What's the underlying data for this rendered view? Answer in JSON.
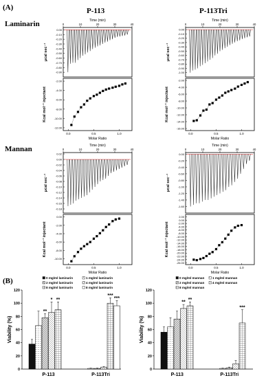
{
  "panel_a_label": "(A)",
  "panel_b_label": "(B)",
  "columns": [
    "P-113",
    "P-113Tri"
  ],
  "rows": [
    "Laminarin",
    "Mannan"
  ],
  "itc_labels": {
    "time": "Time (min)",
    "power": "μcal sec⁻¹",
    "enthalpy": "Kcal mol⁻¹ injectant",
    "molar": "Molar Ratio"
  },
  "chart_data": [
    {
      "type": "scatter",
      "panel": "A",
      "sample": "Laminarin",
      "peptide": "P-113",
      "top": {
        "xlabel": "Time (min)",
        "ylabel": "μcal sec⁻¹",
        "xlim": [
          0,
          40
        ],
        "ylim": [
          -1.0,
          0.05
        ],
        "xticks": [
          0,
          10,
          20,
          30,
          40
        ],
        "yticks": [
          0.0,
          -0.1,
          -0.2,
          -0.3,
          -0.4,
          -0.5,
          -0.6,
          -0.7,
          -0.8,
          -0.9
        ],
        "ytick_labels": [
          "0.00",
          "-0.10",
          "-0.20",
          "-0.30",
          "-0.40",
          "-0.50",
          "-0.60",
          "-0.70",
          "-0.80",
          "-0.90"
        ],
        "peaks": [
          -0.9,
          -0.72,
          -0.7,
          -0.7,
          -0.64,
          -0.6,
          -0.55,
          -0.52,
          -0.48,
          -0.45,
          -0.41,
          -0.38,
          -0.35,
          -0.33,
          -0.3,
          -0.27,
          -0.25,
          -0.22,
          -0.2,
          -0.17,
          -0.15,
          -0.14,
          -0.13,
          -0.12,
          -0.1
        ]
      },
      "bottom": {
        "xlabel": "Molar Ratio",
        "ylabel": "Kcal mol⁻¹ injectant",
        "xlim": [
          -0.1,
          1.25
        ],
        "ylim": [
          -12.6,
          -1.4
        ],
        "xticks": [
          0.0,
          0.5,
          1.0
        ],
        "yticks": [
          -2,
          -4,
          -6,
          -8,
          -10,
          -12
        ],
        "ytick_labels": [
          "-2.00",
          "-4.00",
          "-6.00",
          "-8.00",
          "-10.00",
          "-12.00"
        ],
        "x": [
          0.06,
          0.12,
          0.19,
          0.25,
          0.31,
          0.37,
          0.43,
          0.5,
          0.56,
          0.62,
          0.68,
          0.74,
          0.8,
          0.87,
          0.93,
          1.0,
          1.06,
          1.12
        ],
        "y": [
          -11.4,
          -9.6,
          -8.6,
          -7.6,
          -7.0,
          -6.2,
          -5.7,
          -5.2,
          -4.9,
          -4.5,
          -4.1,
          -3.8,
          -3.6,
          -3.4,
          -3.2,
          -3.0,
          -2.7,
          -2.5
        ]
      }
    },
    {
      "type": "scatter",
      "panel": "A",
      "sample": "Laminarin",
      "peptide": "P-113Tri",
      "top": {
        "xlabel": "Time (min)",
        "ylabel": "μcal sec⁻¹",
        "xlim": [
          0,
          40
        ],
        "ylim": [
          -1.1,
          0.05
        ],
        "xticks": [
          0,
          10,
          20,
          30,
          40
        ],
        "yticks": [
          0.0,
          -0.1,
          -0.2,
          -0.3,
          -0.4,
          -0.5,
          -0.6,
          -0.7,
          -0.8,
          -0.9,
          -1.0
        ],
        "ytick_labels": [
          "0.00",
          "-0.10",
          "-0.20",
          "-0.30",
          "-0.40",
          "-0.50",
          "-0.60",
          "-0.70",
          "-0.80",
          "-0.90",
          "-1.00"
        ],
        "peaks": [
          -1.0,
          -0.95,
          -0.93,
          -0.9,
          -0.85,
          -0.82,
          -0.78,
          -0.74,
          -0.7,
          -0.66,
          -0.6,
          -0.56,
          -0.5,
          -0.47,
          -0.43,
          -0.4,
          -0.36,
          -0.33,
          -0.3,
          -0.27,
          -0.25,
          -0.22,
          -0.2,
          -0.18,
          -0.16
        ]
      },
      "bottom": {
        "xlabel": "Molar Ratio",
        "ylabel": "Kcal mol⁻¹ injectant",
        "xlim": [
          -0.1,
          1.25
        ],
        "ylim": [
          -16.6,
          -1.4
        ],
        "xticks": [
          0.0,
          0.5,
          1.0
        ],
        "yticks": [
          -2,
          -4,
          -6,
          -8,
          -10,
          -12,
          -14,
          -16
        ],
        "ytick_labels": [
          "-2.00",
          "-4.00",
          "-6.00",
          "-8.00",
          "-10.00",
          "-12.00",
          "-14.00",
          "-16.00"
        ],
        "x": [
          0.06,
          0.12,
          0.19,
          0.25,
          0.31,
          0.37,
          0.43,
          0.5,
          0.56,
          0.62,
          0.68,
          0.74,
          0.8,
          0.87,
          0.93,
          1.0,
          1.06,
          1.12
        ],
        "y": [
          -13.8,
          -13.6,
          -12.2,
          -10.8,
          -10.5,
          -9.0,
          -8.6,
          -7.6,
          -7.0,
          -6.4,
          -5.6,
          -5.2,
          -4.8,
          -4.4,
          -3.8,
          -3.3,
          -2.9,
          -2.5
        ]
      }
    },
    {
      "type": "scatter",
      "panel": "A",
      "sample": "Mannan",
      "peptide": "P-113",
      "top": {
        "xlabel": "Time (min)",
        "ylabel": "μcal sec⁻¹",
        "xlim": [
          0,
          40
        ],
        "ylim": [
          -0.195,
          0.025
        ],
        "xticks": [
          0,
          10,
          20,
          30,
          40
        ],
        "yticks": [
          0.02,
          0.0,
          -0.02,
          -0.04,
          -0.06,
          -0.08,
          -0.1,
          -0.12,
          -0.14,
          -0.16,
          -0.18
        ],
        "ytick_labels": [
          "0.02",
          "0.00",
          "-0.02",
          "-0.04",
          "-0.06",
          "-0.08",
          "-0.10",
          "-0.12",
          "-0.14",
          "-0.16",
          "-0.18"
        ],
        "peaks": [
          -0.17,
          -0.165,
          -0.16,
          -0.15,
          -0.145,
          -0.14,
          -0.135,
          -0.13,
          -0.12,
          -0.11,
          -0.1,
          -0.09,
          -0.08,
          -0.075,
          -0.07,
          -0.06,
          -0.05,
          -0.045,
          -0.04,
          -0.035,
          -0.03,
          -0.025,
          -0.02
        ]
      },
      "bottom": {
        "xlabel": "Molar Ratio",
        "ylabel": "Kcal mol⁻¹ injectant",
        "xlim": [
          -0.1,
          1.25
        ],
        "ylim": [
          -11.4,
          0.6
        ],
        "xticks": [
          0.0,
          0.5,
          1.0
        ],
        "yticks": [
          0,
          -2,
          -4,
          -6,
          -8,
          -10
        ],
        "ytick_labels": [
          "0.00",
          "-2.00",
          "-4.00",
          "-6.00",
          "-8.00",
          "-10.00"
        ],
        "x": [
          0.06,
          0.12,
          0.19,
          0.25,
          0.31,
          0.37,
          0.43,
          0.5,
          0.56,
          0.62,
          0.68,
          0.74,
          0.8,
          0.87,
          0.93,
          1.0
        ],
        "y": [
          -10.6,
          -9.4,
          -8.4,
          -7.6,
          -7.0,
          -6.5,
          -6.0,
          -5.2,
          -4.6,
          -3.9,
          -3.2,
          -2.4,
          -1.8,
          -1.0,
          -0.6,
          -0.4
        ]
      }
    },
    {
      "type": "scatter",
      "panel": "A",
      "sample": "Mannan",
      "peptide": "P-113Tri",
      "top": {
        "xlabel": "Time (min)",
        "ylabel": "μcal sec⁻¹",
        "xlim": [
          0,
          40
        ],
        "ylim": [
          -1.8,
          0.05
        ],
        "xticks": [
          0,
          10,
          20,
          30,
          40
        ],
        "yticks": [
          0.0,
          -0.2,
          -0.4,
          -0.6,
          -0.8,
          -1.0,
          -1.2,
          -1.4,
          -1.6
        ],
        "ytick_labels": [
          "0.00",
          "-0.20",
          "-0.40",
          "-0.60",
          "-0.80",
          "-1.00",
          "-1.20",
          "-1.40",
          "-1.60"
        ],
        "peaks": [
          -1.6,
          -1.55,
          -1.5,
          -1.5,
          -1.45,
          -1.4,
          -1.4,
          -1.35,
          -1.3,
          -1.25,
          -1.2,
          -1.15,
          -1.1,
          -1.0,
          -0.95,
          -0.85,
          -0.75,
          -0.6,
          -0.45,
          -0.3,
          -0.2
        ]
      },
      "bottom": {
        "xlabel": "Molar Ratio",
        "ylabel": "Kcal mol⁻¹ injectant",
        "xlim": [
          -0.1,
          1.25
        ],
        "ylim": [
          -27,
          3.5
        ],
        "xticks": [
          0.0,
          0.5,
          1.0
        ],
        "yticks": [
          2,
          0,
          -2,
          -4,
          -6,
          -8,
          -10,
          -12,
          -14,
          -16,
          -18,
          -20,
          -22,
          -24,
          -26
        ],
        "ytick_labels": [
          "2.00",
          "0.00",
          "-2.00",
          "-4.00",
          "-6.00",
          "-8.00",
          "-10.00",
          "-12.00",
          "-14.00",
          "-16.00",
          "-18.00",
          "-20.00",
          "-22.00",
          "-24.00",
          "-26.00"
        ],
        "x": [
          0.06,
          0.12,
          0.19,
          0.25,
          0.31,
          0.37,
          0.43,
          0.5,
          0.56,
          0.62,
          0.68,
          0.74,
          0.8,
          0.87,
          0.93,
          1.0
        ],
        "y": [
          -24.0,
          -24.3,
          -23.6,
          -23.0,
          -21.8,
          -20.4,
          -19.4,
          -17.6,
          -15.2,
          -13.4,
          -11.2,
          -8.8,
          -6.4,
          -4.4,
          -3.4,
          -3.0
        ]
      }
    },
    {
      "type": "bar",
      "panel": "B",
      "sample": "Laminarin",
      "categories": [
        "P-113",
        "P-113Tri"
      ],
      "ylabel": "Viability (%)",
      "ylim": [
        0,
        120
      ],
      "yticks": [
        0,
        20,
        40,
        60,
        80,
        100,
        120
      ],
      "legend_placement": "top",
      "series": [
        {
          "name": "0 mg/ml laminarin",
          "values": [
            38,
            0
          ],
          "errors": [
            7,
            0
          ]
        },
        {
          "name": "1 mg/ml laminarin",
          "values": [
            66,
            1
          ],
          "errors": [
            22,
            0.5
          ]
        },
        {
          "name": "2 mg/ml laminarin",
          "values": [
            78,
            1
          ],
          "errors": [
            6,
            0.5
          ]
        },
        {
          "name": "4 mg/ml laminarin",
          "values": [
            86,
            3
          ],
          "errors": [
            16,
            1
          ]
        },
        {
          "name": "8 mg/ml laminarin",
          "values": [
            90,
            100
          ],
          "errors": [
            12,
            8
          ]
        },
        {
          "name": "8 mg/ml laminarin",
          "values": [
            0,
            96
          ],
          "errors": [
            0,
            8
          ]
        }
      ],
      "annotations": [
        {
          "category": "P-113",
          "series": 2,
          "text": "**"
        },
        {
          "category": "P-113",
          "series": 3,
          "text": "*"
        },
        {
          "category": "P-113",
          "series": 4,
          "text": "**"
        },
        {
          "category": "P-113Tri",
          "series": 4,
          "text": "***"
        },
        {
          "category": "P-113Tri",
          "series": 5,
          "text": "***"
        }
      ]
    },
    {
      "type": "bar",
      "panel": "B",
      "sample": "Mannan",
      "categories": [
        "P-113",
        "P-113Tri"
      ],
      "ylabel": "Viability (%)",
      "ylim": [
        0,
        120
      ],
      "yticks": [
        0,
        20,
        40,
        60,
        80,
        100,
        120
      ],
      "legend_placement": "top",
      "series": [
        {
          "name": "0 mg/ml mannan",
          "values": [
            56,
            0
          ],
          "errors": [
            8,
            0
          ]
        },
        {
          "name": "1 mg/ml mannan",
          "values": [
            64,
            1
          ],
          "errors": [
            14,
            0.5
          ]
        },
        {
          "name": "2 mg/ml mannan",
          "values": [
            76,
            2
          ],
          "errors": [
            12,
            1
          ]
        },
        {
          "name": "4 mg/ml mannan",
          "values": [
            92,
            8
          ],
          "errors": [
            6,
            5
          ]
        },
        {
          "name": "8 mg/ml mannan",
          "values": [
            96,
            70
          ],
          "errors": [
            6,
            20
          ]
        }
      ],
      "annotations": [
        {
          "category": "P-113",
          "series": 3,
          "text": "**"
        },
        {
          "category": "P-113",
          "series": 4,
          "text": "**"
        },
        {
          "category": "P-113Tri",
          "series": 4,
          "text": "***"
        }
      ]
    }
  ]
}
